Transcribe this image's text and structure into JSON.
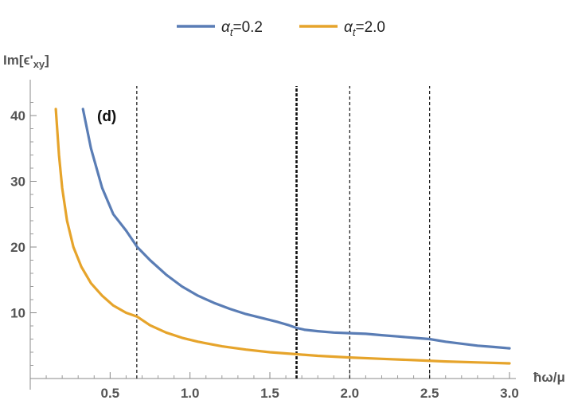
{
  "chart_data": {
    "type": "line",
    "panel_label": "(d)",
    "ylabel": "Im[ϵ'xy]",
    "ylabel_parts": {
      "main": "Im[ϵ'",
      "sub": "xy",
      "close": "]"
    },
    "xlabel": "ħω/μ",
    "xlim": [
      0.0,
      3.02
    ],
    "ylim": [
      0,
      44
    ],
    "xticks": [
      0.5,
      1.0,
      1.5,
      2.0,
      2.5,
      3.0
    ],
    "xtick_labels": [
      "0.5",
      "1.0",
      "1.5",
      "2.0",
      "2.5",
      "3.0"
    ],
    "yticks": [
      10,
      20,
      30,
      40
    ],
    "ytick_labels": [
      "10",
      "20",
      "30",
      "40"
    ],
    "vlines": [
      {
        "x": 0.667,
        "style": "dashed",
        "weight": "thin"
      },
      {
        "x": 1.667,
        "style": "dashed",
        "weight": "thick"
      },
      {
        "x": 2.0,
        "style": "dashed",
        "weight": "thin"
      },
      {
        "x": 2.5,
        "style": "dashed",
        "weight": "thin"
      }
    ],
    "legend": {
      "placement": "top-center"
    },
    "series": [
      {
        "name": "αt=0.2",
        "name_parts": {
          "sym": "α",
          "sub": "t",
          "val": "=0.2"
        },
        "color": "#5a7db5",
        "x": [
          0.33,
          0.38,
          0.45,
          0.52,
          0.6,
          0.67,
          0.75,
          0.85,
          0.95,
          1.05,
          1.15,
          1.25,
          1.35,
          1.45,
          1.55,
          1.62,
          1.667,
          1.72,
          1.8,
          1.9,
          2.0,
          2.1,
          2.2,
          2.3,
          2.4,
          2.5,
          2.6,
          2.7,
          2.8,
          2.9,
          3.0
        ],
        "y": [
          41.0,
          35.0,
          29.0,
          25.0,
          22.5,
          20.0,
          18.0,
          15.8,
          14.0,
          12.6,
          11.5,
          10.6,
          9.8,
          9.2,
          8.6,
          8.1,
          7.7,
          7.4,
          7.2,
          7.0,
          6.9,
          6.8,
          6.6,
          6.4,
          6.2,
          6.0,
          5.6,
          5.3,
          5.0,
          4.8,
          4.6
        ]
      },
      {
        "name": "αt=2.0",
        "name_parts": {
          "sym": "α",
          "sub": "t",
          "val": "=2.0"
        },
        "color": "#e6a42b",
        "x": [
          0.16,
          0.18,
          0.2,
          0.23,
          0.27,
          0.32,
          0.38,
          0.45,
          0.52,
          0.6,
          0.67,
          0.75,
          0.85,
          0.95,
          1.05,
          1.2,
          1.35,
          1.5,
          1.667,
          1.8,
          2.0,
          2.2,
          2.4,
          2.6,
          2.8,
          3.0
        ],
        "y": [
          41.0,
          34.0,
          29.0,
          24.0,
          20.0,
          17.0,
          14.5,
          12.6,
          11.1,
          10.0,
          9.4,
          8.1,
          7.0,
          6.2,
          5.6,
          4.9,
          4.4,
          4.0,
          3.7,
          3.45,
          3.2,
          3.0,
          2.8,
          2.6,
          2.45,
          2.3
        ]
      }
    ]
  }
}
